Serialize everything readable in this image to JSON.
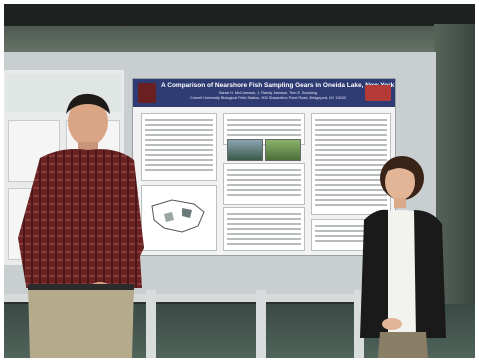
{
  "photo": {
    "description_label": "",
    "poster": {
      "title": "A Comparison of Nearshore Fish Sampling Gears in Oneida Lake, New York",
      "authors_line1": "Sarah H. McCormack, J. Randy Jackson, Tom E. Brooking",
      "authors_line2": "Cornell University Biological Field Station, 900 Shackelton Point Road, Bridgeport, NY 13030"
    },
    "left_poster": {
      "title_fragment": ""
    },
    "colors": {
      "poster_header": "#2f3c73",
      "board": "#c9cfd0",
      "shirt_plaid": "#7a2a2a",
      "cardigan": "#1a1a1a"
    }
  }
}
